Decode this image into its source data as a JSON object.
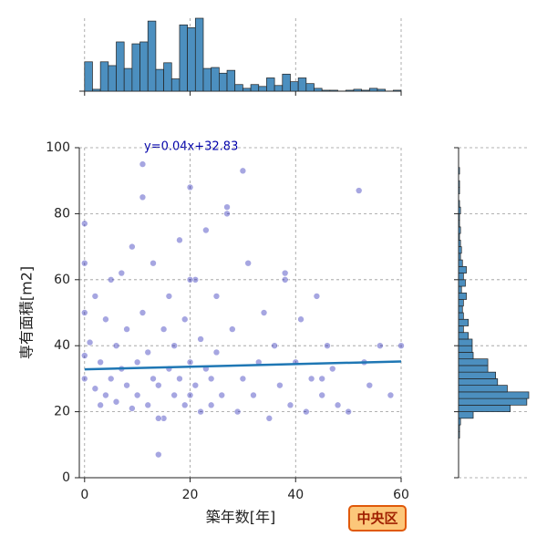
{
  "chart_data": {
    "type": "jointplot",
    "xlabel": "築年数[年]",
    "ylabel": "専有面積[m2]",
    "annotation": "y=0.04x+32.83",
    "badge": "中央区",
    "regression": {
      "slope": 0.04,
      "intercept": 32.83,
      "color": "#1f77b4"
    },
    "color": "#0000aa",
    "xlim": [
      -1,
      60
    ],
    "ylim": [
      0,
      100
    ],
    "xticks": [
      0,
      20,
      40,
      60
    ],
    "yticks": [
      0,
      20,
      40,
      60,
      80,
      100
    ],
    "grid": true,
    "x": [
      0,
      0,
      0,
      0,
      0,
      1,
      2,
      2,
      3,
      3,
      4,
      4,
      5,
      5,
      6,
      6,
      7,
      7,
      8,
      8,
      9,
      9,
      10,
      10,
      11,
      11,
      12,
      12,
      13,
      13,
      14,
      14,
      15,
      15,
      16,
      16,
      17,
      17,
      18,
      18,
      19,
      19,
      20,
      20,
      20,
      21,
      21,
      22,
      22,
      23,
      23,
      24,
      24,
      25,
      25,
      26,
      27,
      28,
      29,
      30,
      31,
      32,
      33,
      34,
      35,
      36,
      37,
      38,
      39,
      40,
      41,
      42,
      43,
      44,
      45,
      46,
      47,
      48,
      50,
      52,
      54,
      56,
      58,
      60,
      11,
      27,
      53,
      20,
      14,
      30,
      38,
      45
    ],
    "y": [
      77,
      65,
      50,
      37,
      30,
      41,
      27,
      55,
      35,
      22,
      48,
      25,
      60,
      30,
      40,
      23,
      33,
      62,
      28,
      45,
      21,
      70,
      35,
      25,
      95,
      50,
      38,
      22,
      30,
      65,
      7,
      28,
      45,
      18,
      33,
      55,
      25,
      40,
      30,
      72,
      22,
      48,
      88,
      35,
      25,
      60,
      28,
      20,
      42,
      33,
      75,
      30,
      22,
      55,
      38,
      25,
      82,
      45,
      20,
      30,
      65,
      25,
      35,
      50,
      18,
      40,
      28,
      60,
      22,
      35,
      48,
      20,
      30,
      55,
      25,
      40,
      33,
      22,
      20,
      87,
      28,
      40,
      25,
      40,
      85,
      80,
      35,
      60,
      18,
      93,
      62,
      30
    ],
    "hist_color": "#4c8fbf",
    "x_hist": {
      "bins": [
        0,
        1.5,
        3,
        4.5,
        6,
        7.5,
        9,
        10.5,
        12,
        13.5,
        15,
        16.5,
        18,
        19.5,
        21,
        22.5,
        24,
        25.5,
        27,
        28.5,
        30,
        31.5,
        33,
        34.5,
        36,
        37.5,
        39,
        40.5,
        42,
        43.5,
        45,
        46.5,
        48,
        49.5,
        51,
        52.5,
        54,
        55.5,
        57,
        58.5,
        60
      ],
      "counts": [
        31,
        2,
        31,
        27,
        52,
        24,
        50,
        52,
        74,
        23,
        30,
        13,
        70,
        67,
        77,
        24,
        25,
        19,
        22,
        7,
        3,
        7,
        5,
        14,
        6,
        18,
        10,
        14,
        8,
        3,
        1,
        1,
        0,
        1,
        2,
        1,
        3,
        2,
        0,
        1
      ]
    },
    "y_hist": {
      "bins": [
        12,
        14,
        16,
        18,
        20,
        22,
        24,
        26,
        28,
        30,
        32,
        34,
        36,
        38,
        40,
        42,
        44,
        46,
        48,
        50,
        52,
        54,
        56,
        58,
        60,
        62,
        64,
        66,
        68,
        70,
        72,
        74,
        76,
        78,
        80,
        82,
        84,
        86,
        88,
        90,
        92,
        94,
        96
      ],
      "counts": [
        1,
        1,
        2,
        15,
        53,
        70,
        72,
        50,
        40,
        38,
        30,
        30,
        15,
        14,
        14,
        10,
        5,
        10,
        5,
        4,
        5,
        8,
        3,
        7,
        5,
        8,
        4,
        2,
        3,
        2,
        1,
        2,
        1,
        1,
        2,
        1,
        0,
        1,
        1,
        0,
        1,
        0
      ]
    }
  }
}
